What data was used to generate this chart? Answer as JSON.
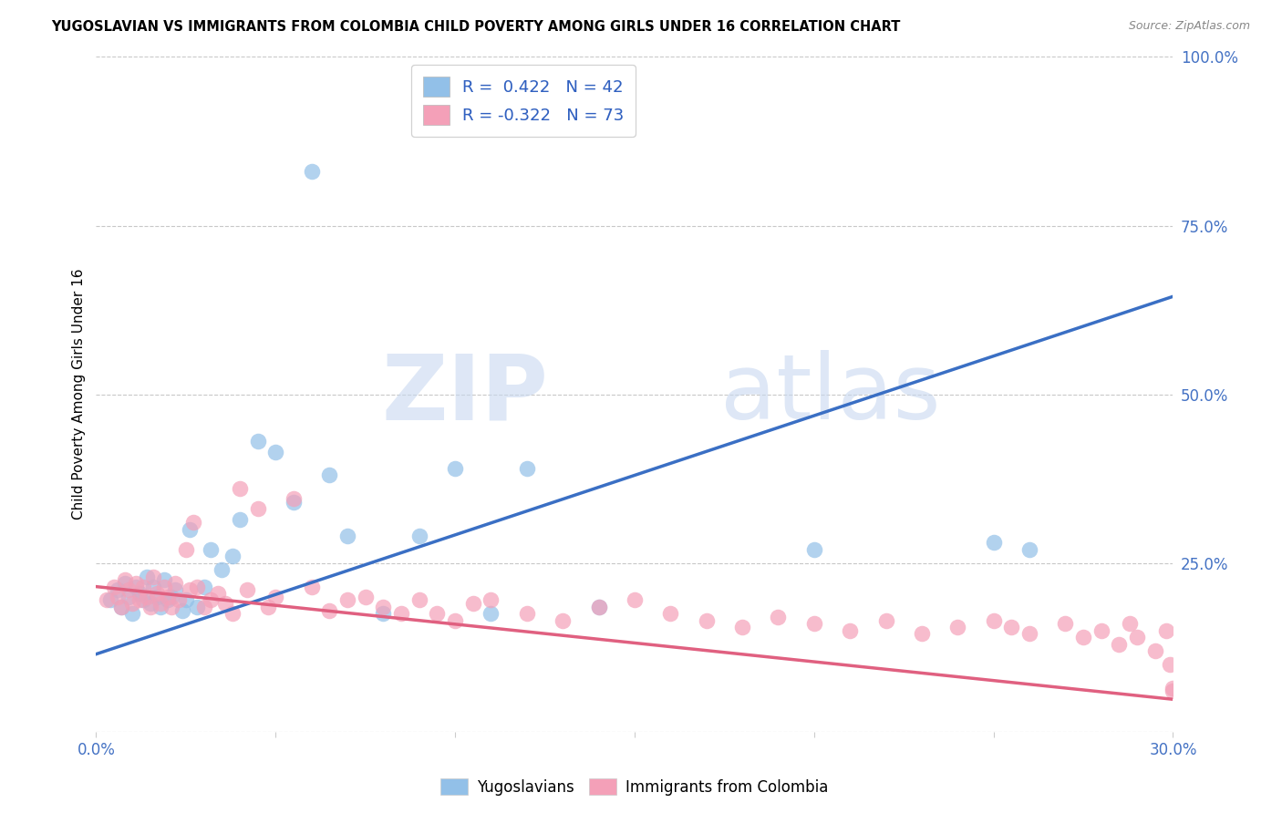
{
  "title": "YUGOSLAVIAN VS IMMIGRANTS FROM COLOMBIA CHILD POVERTY AMONG GIRLS UNDER 16 CORRELATION CHART",
  "source": "Source: ZipAtlas.com",
  "ylabel": "Child Poverty Among Girls Under 16",
  "x_min": 0.0,
  "x_max": 0.3,
  "y_min": 0.0,
  "y_max": 1.0,
  "x_ticks": [
    0.0,
    0.05,
    0.1,
    0.15,
    0.2,
    0.25,
    0.3
  ],
  "x_tick_labels": [
    "0.0%",
    "",
    "",
    "",
    "",
    "",
    "30.0%"
  ],
  "y_ticks_right": [
    0.0,
    0.25,
    0.5,
    0.75,
    1.0
  ],
  "y_tick_labels_right": [
    "",
    "25.0%",
    "50.0%",
    "75.0%",
    "100.0%"
  ],
  "legend_blue_label": "R =  0.422   N = 42",
  "legend_pink_label": "R = -0.322   N = 73",
  "blue_color": "#92C0E8",
  "pink_color": "#F4A0B8",
  "blue_line_color": "#3A6FC4",
  "pink_line_color": "#E06080",
  "watermark_zip": "ZIP",
  "watermark_atlas": "atlas",
  "blue_scatter_x": [
    0.004,
    0.006,
    0.007,
    0.008,
    0.009,
    0.01,
    0.011,
    0.012,
    0.013,
    0.014,
    0.015,
    0.016,
    0.017,
    0.018,
    0.019,
    0.02,
    0.021,
    0.022,
    0.024,
    0.025,
    0.026,
    0.028,
    0.03,
    0.032,
    0.035,
    0.038,
    0.04,
    0.045,
    0.05,
    0.055,
    0.06,
    0.065,
    0.07,
    0.08,
    0.09,
    0.1,
    0.11,
    0.12,
    0.14,
    0.2,
    0.25,
    0.26
  ],
  "blue_scatter_y": [
    0.195,
    0.21,
    0.185,
    0.22,
    0.2,
    0.175,
    0.215,
    0.205,
    0.195,
    0.23,
    0.19,
    0.215,
    0.2,
    0.185,
    0.225,
    0.195,
    0.2,
    0.21,
    0.18,
    0.195,
    0.3,
    0.185,
    0.215,
    0.27,
    0.24,
    0.26,
    0.315,
    0.43,
    0.415,
    0.34,
    0.83,
    0.38,
    0.29,
    0.175,
    0.29,
    0.39,
    0.175,
    0.39,
    0.185,
    0.27,
    0.28,
    0.27
  ],
  "pink_scatter_x": [
    0.003,
    0.005,
    0.006,
    0.007,
    0.008,
    0.009,
    0.01,
    0.011,
    0.012,
    0.013,
    0.014,
    0.015,
    0.016,
    0.017,
    0.018,
    0.019,
    0.02,
    0.021,
    0.022,
    0.023,
    0.025,
    0.026,
    0.027,
    0.028,
    0.03,
    0.032,
    0.034,
    0.036,
    0.038,
    0.04,
    0.042,
    0.045,
    0.048,
    0.05,
    0.055,
    0.06,
    0.065,
    0.07,
    0.075,
    0.08,
    0.085,
    0.09,
    0.095,
    0.1,
    0.105,
    0.11,
    0.12,
    0.13,
    0.14,
    0.15,
    0.16,
    0.17,
    0.18,
    0.19,
    0.2,
    0.21,
    0.22,
    0.23,
    0.24,
    0.25,
    0.255,
    0.26,
    0.27,
    0.275,
    0.28,
    0.285,
    0.288,
    0.29,
    0.295,
    0.298,
    0.299,
    0.3,
    0.3
  ],
  "pink_scatter_y": [
    0.195,
    0.215,
    0.2,
    0.185,
    0.225,
    0.21,
    0.19,
    0.22,
    0.195,
    0.215,
    0.2,
    0.185,
    0.23,
    0.205,
    0.19,
    0.215,
    0.2,
    0.185,
    0.22,
    0.195,
    0.27,
    0.21,
    0.31,
    0.215,
    0.185,
    0.195,
    0.205,
    0.19,
    0.175,
    0.36,
    0.21,
    0.33,
    0.185,
    0.2,
    0.345,
    0.215,
    0.18,
    0.195,
    0.2,
    0.185,
    0.175,
    0.195,
    0.175,
    0.165,
    0.19,
    0.195,
    0.175,
    0.165,
    0.185,
    0.195,
    0.175,
    0.165,
    0.155,
    0.17,
    0.16,
    0.15,
    0.165,
    0.145,
    0.155,
    0.165,
    0.155,
    0.145,
    0.16,
    0.14,
    0.15,
    0.13,
    0.16,
    0.14,
    0.12,
    0.15,
    0.1,
    0.065,
    0.06
  ],
  "blue_trend_x": [
    0.0,
    0.3
  ],
  "blue_trend_y": [
    0.115,
    0.645
  ],
  "pink_trend_x": [
    0.0,
    0.3
  ],
  "pink_trend_y": [
    0.215,
    0.048
  ],
  "background_color": "#FFFFFF",
  "grid_color": "#C8C8C8"
}
